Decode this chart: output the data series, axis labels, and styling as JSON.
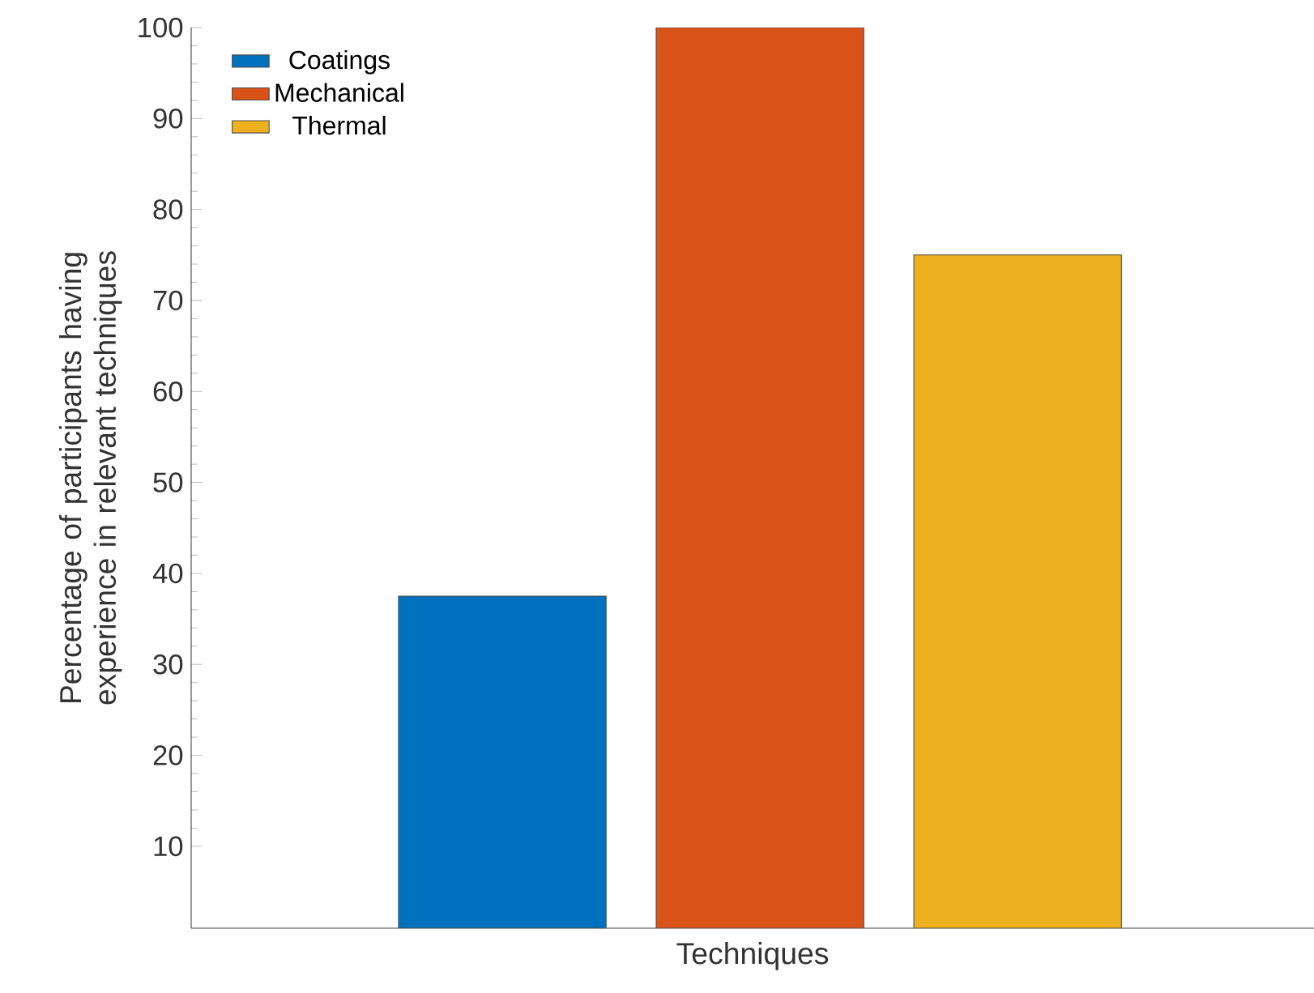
{
  "chart_data": {
    "type": "bar",
    "xlabel": "Techniques",
    "ylabel": "Percentage of participants having experience in relevant techniques",
    "categories": [
      null
    ],
    "series": [
      {
        "name": "Coatings",
        "color": "#0072bd",
        "values": [
          37.5
        ]
      },
      {
        "name": "Mechanical",
        "color": "#d95319",
        "values": [
          100
        ]
      },
      {
        "name": "Thermal",
        "color": "#edb120",
        "values": [
          75
        ]
      }
    ],
    "ylim": [
      1,
      100
    ],
    "yticks": [
      10,
      20,
      30,
      40,
      50,
      60,
      70,
      80,
      90,
      100
    ],
    "legend": "top left",
    "grid": false,
    "tick_labels": "y"
  }
}
